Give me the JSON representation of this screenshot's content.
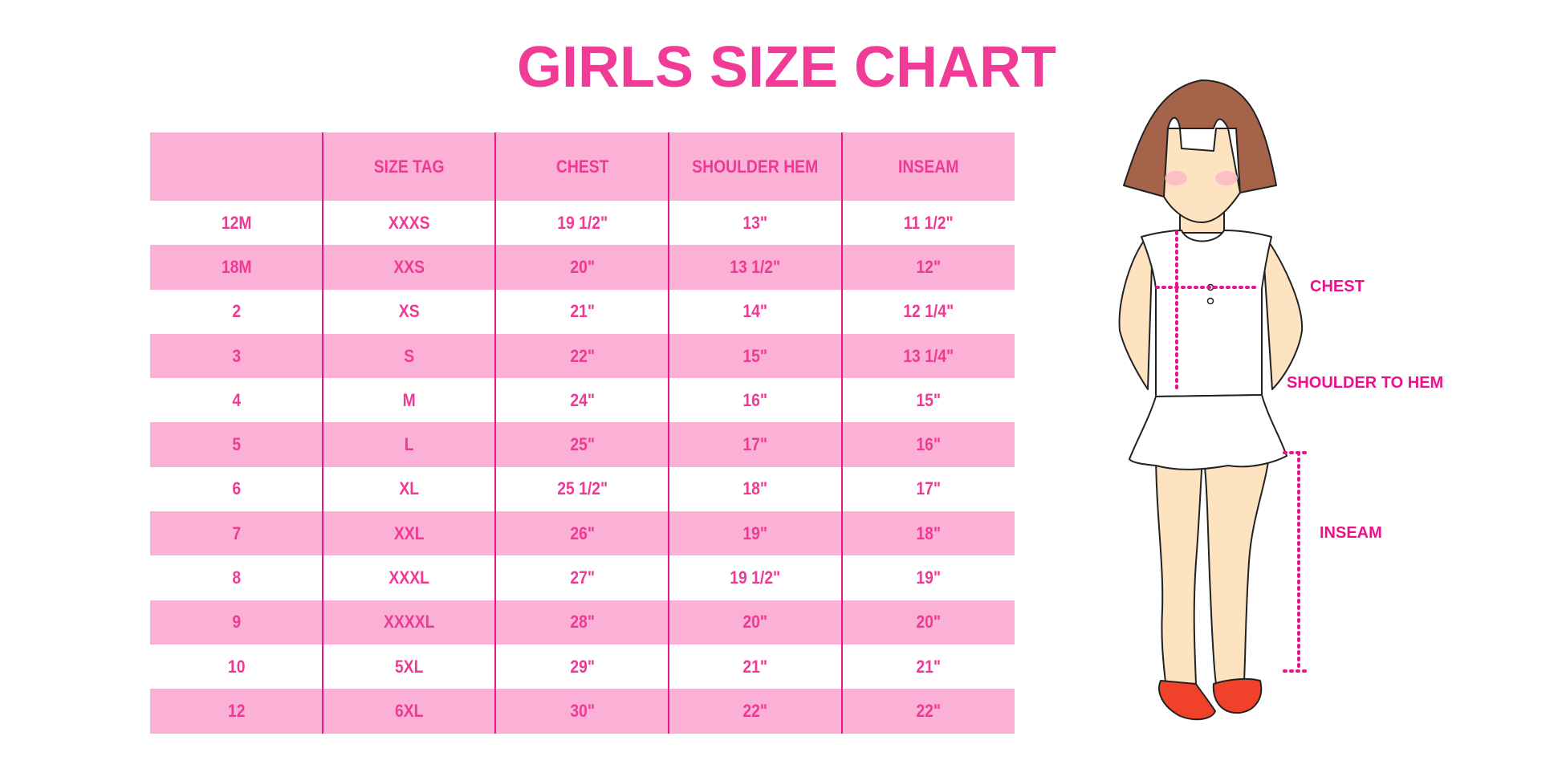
{
  "title": "GIRLS SIZE CHART",
  "table": {
    "headers": [
      "",
      "SIZE TAG",
      "CHEST",
      "SHOULDER HEM",
      "INSEAM"
    ],
    "rows": [
      [
        "12M",
        "XXXS",
        "19 1/2\"",
        "13\"",
        "11 1/2\""
      ],
      [
        "18M",
        "XXS",
        "20\"",
        "13 1/2\"",
        "12\""
      ],
      [
        "2",
        "XS",
        "21\"",
        "14\"",
        "12 1/4\""
      ],
      [
        "3",
        "S",
        "22\"",
        "15\"",
        "13 1/4\""
      ],
      [
        "4",
        "M",
        "24\"",
        "16\"",
        "15\""
      ],
      [
        "5",
        "L",
        "25\"",
        "17\"",
        "16\""
      ],
      [
        "6",
        "XL",
        "25 1/2\"",
        "18\"",
        "17\""
      ],
      [
        "7",
        "XXL",
        "26\"",
        "19\"",
        "18\""
      ],
      [
        "8",
        "XXXL",
        "27\"",
        "19 1/2\"",
        "19\""
      ],
      [
        "9",
        "XXXXL",
        "28\"",
        "20\"",
        "20\""
      ],
      [
        "10",
        "5XL",
        "29\"",
        "21\"",
        "21\""
      ],
      [
        "12",
        "6XL",
        "30\"",
        "22\"",
        "22\""
      ]
    ]
  },
  "figure": {
    "labels": {
      "chest": "CHEST",
      "shoulder_to_hem": "SHOULDER TO HEM",
      "inseam": "INSEAM"
    }
  },
  "colors": {
    "accent": "#f03b97",
    "row_pink": "#fbb1d5",
    "divider": "#e8168a"
  }
}
